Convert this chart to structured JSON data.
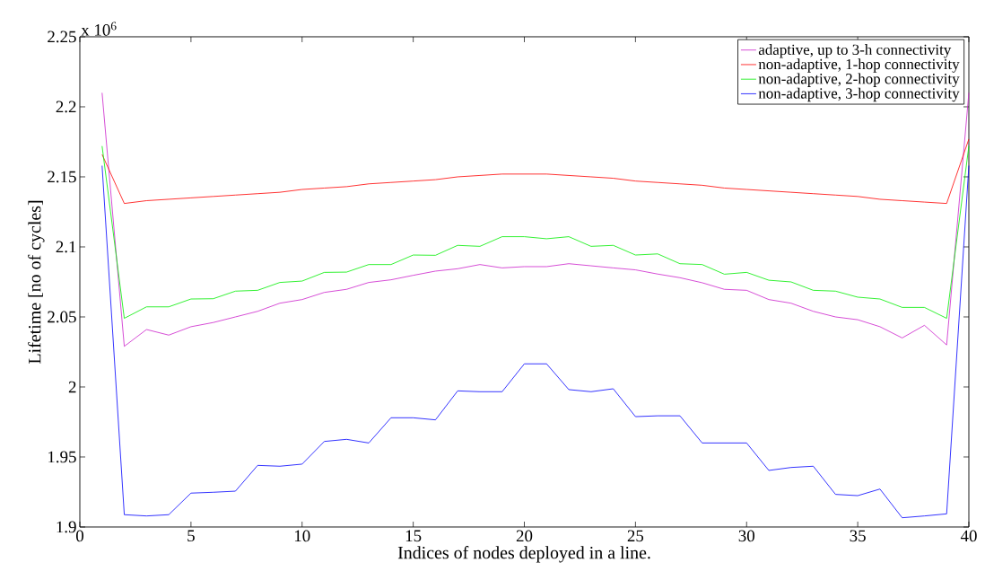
{
  "chart_data": {
    "type": "line",
    "xlabel": "Indices of nodes deployed in a line.",
    "ylabel": "Lifetime [no of cycles]",
    "annotations": [
      "x 10$^{6}$"
    ],
    "x": [
      1,
      2,
      3,
      4,
      5,
      6,
      7,
      8,
      9,
      10,
      11,
      12,
      13,
      14,
      15,
      16,
      17,
      18,
      19,
      20,
      21,
      22,
      23,
      24,
      25,
      26,
      27,
      28,
      29,
      30,
      31,
      32,
      33,
      34,
      35,
      36,
      37,
      38,
      39,
      40
    ],
    "xlim": [
      0,
      40
    ],
    "xticks": [
      0,
      5,
      10,
      15,
      20,
      25,
      30,
      35,
      40
    ],
    "ylim": [
      1.9,
      2.25
    ],
    "yticks": [
      1.9,
      1.95,
      2,
      2.05,
      2.1,
      2.15,
      2.2,
      2.25
    ],
    "legend": "top right",
    "grid": false,
    "marker": "none",
    "line_style": "solid",
    "series": [
      {
        "name": "adaptive, up to 3-h connectivity",
        "color": "#cc22cc",
        "values": [
          2.21,
          2.029,
          2.041,
          2.037,
          2.043,
          2.046,
          2.05,
          2.054,
          2.0598,
          2.0624,
          2.0675,
          2.0697,
          2.0746,
          2.0765,
          2.0797,
          2.0827,
          2.0844,
          2.0874,
          2.085,
          2.0859,
          2.0859,
          2.088,
          2.0865,
          2.085,
          2.0836,
          2.0806,
          2.078,
          2.0744,
          2.0697,
          2.069,
          2.0624,
          2.0598,
          2.054,
          2.05,
          2.048,
          2.043,
          2.035,
          2.044,
          2.03,
          2.21
        ]
      },
      {
        "name": "non-adaptive, 1-hop connectivity",
        "color": "#ff0000",
        "values": [
          2.166,
          2.131,
          2.133,
          2.134,
          2.135,
          2.136,
          2.137,
          2.138,
          2.139,
          2.141,
          2.142,
          2.143,
          2.145,
          2.146,
          2.147,
          2.148,
          2.15,
          2.151,
          2.152,
          2.152,
          2.152,
          2.151,
          2.15,
          2.149,
          2.147,
          2.146,
          2.145,
          2.144,
          2.142,
          2.141,
          2.14,
          2.139,
          2.138,
          2.137,
          2.136,
          2.134,
          2.133,
          2.132,
          2.131,
          2.177
        ]
      },
      {
        "name": "non-adaptive, 2-hop connectivity",
        "color": "#00ee00",
        "values": [
          2.172,
          2.049,
          2.0572,
          2.0572,
          2.0628,
          2.063,
          2.0684,
          2.069,
          2.0746,
          2.0756,
          2.0818,
          2.082,
          2.0874,
          2.0874,
          2.0942,
          2.094,
          2.1011,
          2.1004,
          2.1073,
          2.1073,
          2.1058,
          2.1073,
          2.1004,
          2.1011,
          2.0942,
          2.095,
          2.088,
          2.0874,
          2.0805,
          2.0818,
          2.0762,
          2.075,
          2.069,
          2.0684,
          2.0641,
          2.0628,
          2.0568,
          2.0568,
          2.049,
          2.172
        ]
      },
      {
        "name": "non-adaptive, 3-hop connectivity",
        "color": "#0000ff",
        "values": [
          2.158,
          1.9088,
          1.9079,
          1.9088,
          1.9242,
          1.9248,
          1.9256,
          1.944,
          1.9434,
          1.9449,
          1.9611,
          1.9626,
          1.96,
          1.978,
          1.978,
          1.9765,
          1.9972,
          1.9966,
          1.9966,
          2.0165,
          2.0165,
          1.9981,
          1.9966,
          1.9987,
          1.9788,
          1.9794,
          1.9794,
          1.96,
          1.96,
          1.96,
          1.9404,
          1.9425,
          1.9434,
          1.9233,
          1.9224,
          1.9271,
          1.9066,
          1.9079,
          1.9094,
          2.158
        ]
      }
    ]
  }
}
